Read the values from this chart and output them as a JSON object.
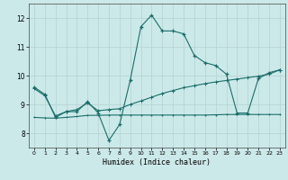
{
  "title": "",
  "xlabel": "Humidex (Indice chaleur)",
  "bg_color": "#cce9e9",
  "grid_color": "#b8d4d4",
  "line_color": "#1a6e6a",
  "xlim": [
    -0.5,
    23.5
  ],
  "ylim": [
    7.5,
    12.5
  ],
  "yticks": [
    8,
    9,
    10,
    11,
    12
  ],
  "xticks": [
    0,
    1,
    2,
    3,
    4,
    5,
    6,
    7,
    8,
    9,
    10,
    11,
    12,
    13,
    14,
    15,
    16,
    17,
    18,
    19,
    20,
    21,
    22,
    23
  ],
  "series1_x": [
    0,
    1,
    2,
    3,
    4,
    5,
    6,
    7,
    8,
    9,
    10,
    11,
    12,
    13,
    14,
    15,
    16,
    17,
    18,
    19,
    20,
    21,
    22,
    23
  ],
  "series1_y": [
    9.6,
    9.35,
    8.55,
    8.75,
    8.75,
    9.1,
    8.7,
    7.75,
    8.3,
    9.85,
    11.7,
    12.1,
    11.55,
    11.55,
    11.45,
    10.7,
    10.45,
    10.35,
    10.05,
    8.7,
    8.7,
    9.9,
    10.1,
    10.2
  ],
  "series2_x": [
    0,
    1,
    2,
    3,
    4,
    5,
    6,
    7,
    8,
    9,
    10,
    11,
    12,
    13,
    14,
    15,
    16,
    17,
    18,
    19,
    20,
    21,
    22,
    23
  ],
  "series2_y": [
    9.55,
    9.3,
    8.6,
    8.75,
    8.82,
    9.05,
    8.78,
    8.82,
    8.85,
    9.0,
    9.12,
    9.25,
    9.38,
    9.48,
    9.58,
    9.65,
    9.72,
    9.78,
    9.83,
    9.88,
    9.93,
    9.98,
    10.05,
    10.2
  ],
  "series3_x": [
    0,
    1,
    2,
    3,
    4,
    5,
    6,
    7,
    8,
    9,
    10,
    11,
    12,
    13,
    14,
    15,
    16,
    17,
    18,
    19,
    20,
    21,
    22,
    23
  ],
  "series3_y": [
    8.55,
    8.53,
    8.52,
    8.55,
    8.58,
    8.62,
    8.62,
    8.63,
    8.63,
    8.63,
    8.63,
    8.63,
    8.63,
    8.63,
    8.63,
    8.63,
    8.63,
    8.64,
    8.65,
    8.65,
    8.65,
    8.65,
    8.65,
    8.65
  ]
}
